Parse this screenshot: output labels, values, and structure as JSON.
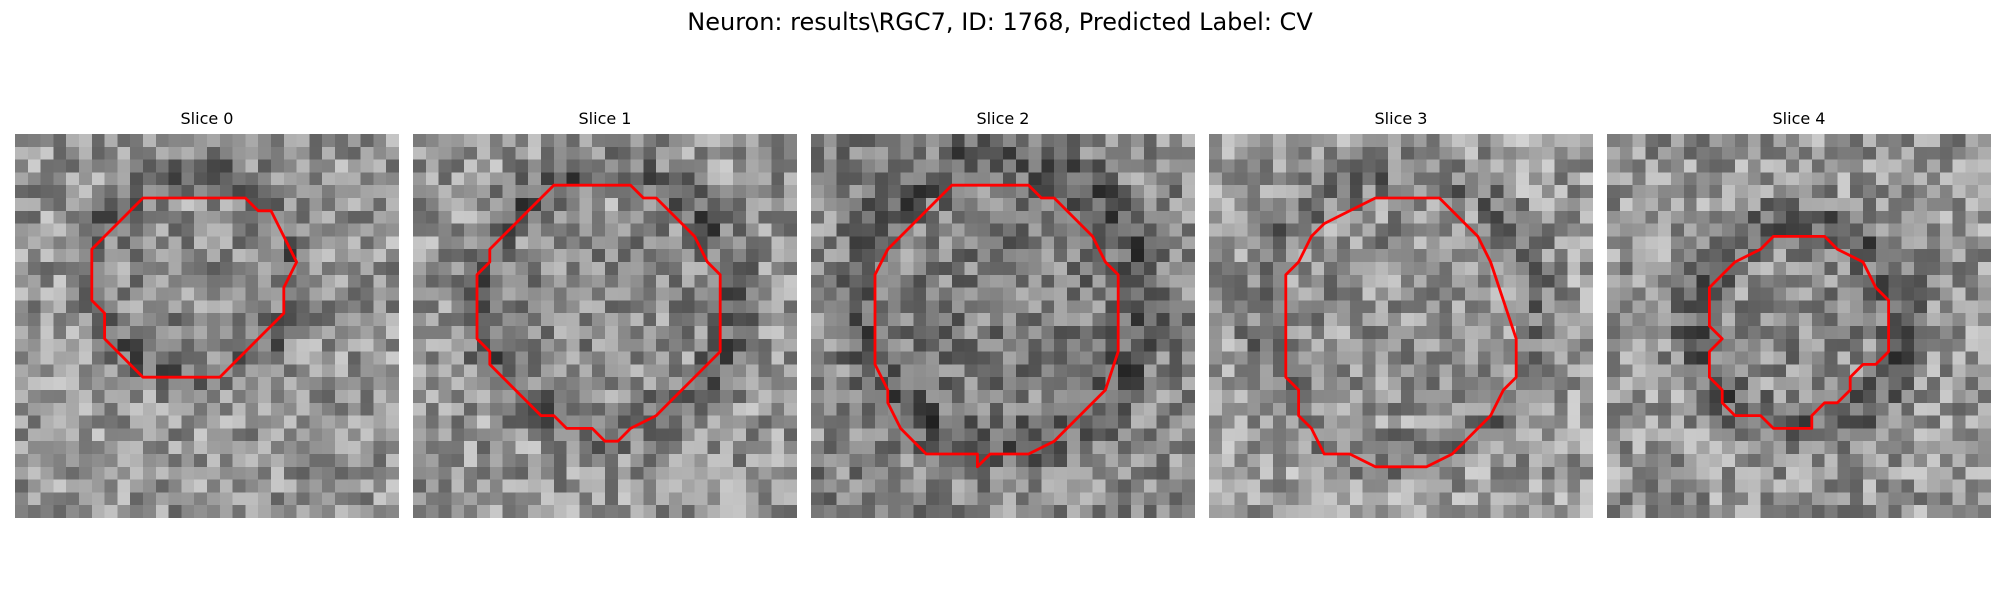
{
  "figure": {
    "title": "Neuron: results\\RGC7, ID: 1768, Predicted Label: CV"
  },
  "contour_color": "#ff0000",
  "grid_size": 30,
  "slices": [
    {
      "label": "Slice 0",
      "seed": 11,
      "base_gray": 150,
      "ring": {
        "cx": 14,
        "cy": 11,
        "r": 8,
        "width": 2.5,
        "dark": -55
      },
      "contour": [
        [
          10,
          5
        ],
        [
          18,
          5
        ],
        [
          19,
          6
        ],
        [
          20,
          6
        ],
        [
          21,
          8
        ],
        [
          22,
          10
        ],
        [
          21,
          12
        ],
        [
          21,
          14
        ],
        [
          19,
          16
        ],
        [
          17,
          18
        ],
        [
          16,
          19
        ],
        [
          10,
          19
        ],
        [
          8,
          17
        ],
        [
          7,
          16
        ],
        [
          7,
          14
        ],
        [
          6,
          13
        ],
        [
          6,
          9
        ],
        [
          7,
          8
        ],
        [
          9,
          6
        ]
      ]
    },
    {
      "label": "Slice 1",
      "seed": 23,
      "base_gray": 150,
      "ring": {
        "cx": 15,
        "cy": 13,
        "r": 10,
        "width": 2.5,
        "dark": -60
      },
      "contour": [
        [
          11,
          4
        ],
        [
          17,
          4
        ],
        [
          18,
          5
        ],
        [
          19,
          5
        ],
        [
          22,
          8
        ],
        [
          23,
          10
        ],
        [
          24,
          11
        ],
        [
          24,
          17
        ],
        [
          20,
          21
        ],
        [
          19,
          22
        ],
        [
          17,
          23
        ],
        [
          16,
          24
        ],
        [
          15,
          24
        ],
        [
          14,
          23
        ],
        [
          12,
          23
        ],
        [
          11,
          22
        ],
        [
          10,
          22
        ],
        [
          7,
          19
        ],
        [
          6,
          18
        ],
        [
          6,
          17
        ],
        [
          5,
          16
        ],
        [
          5,
          11
        ],
        [
          6,
          10
        ],
        [
          6,
          9
        ],
        [
          7,
          8
        ],
        [
          8,
          7
        ],
        [
          9,
          6
        ],
        [
          10,
          5
        ]
      ]
    },
    {
      "label": "Slice 2",
      "seed": 37,
      "base_gray": 135,
      "ring": {
        "cx": 15,
        "cy": 13,
        "r": 11,
        "width": 3,
        "dark": -50
      },
      "contour": [
        [
          11,
          4
        ],
        [
          17,
          4
        ],
        [
          18,
          5
        ],
        [
          19,
          5
        ],
        [
          22,
          8
        ],
        [
          23,
          10
        ],
        [
          24,
          11
        ],
        [
          24,
          17
        ],
        [
          23,
          20
        ],
        [
          20,
          23
        ],
        [
          19,
          24
        ],
        [
          17,
          25
        ],
        [
          14,
          25
        ],
        [
          13,
          26
        ],
        [
          13,
          25
        ],
        [
          9,
          25
        ],
        [
          8,
          24
        ],
        [
          7,
          23
        ],
        [
          6,
          21
        ],
        [
          6,
          20
        ],
        [
          5,
          18
        ],
        [
          5,
          11
        ],
        [
          6,
          9
        ],
        [
          8,
          7
        ],
        [
          10,
          5
        ]
      ]
    },
    {
      "label": "Slice 3",
      "seed": 51,
      "base_gray": 155,
      "ring": {
        "cx": 15,
        "cy": 14,
        "r": 11,
        "width": 2.5,
        "dark": -45
      },
      "contour": [
        [
          13,
          5
        ],
        [
          18,
          5
        ],
        [
          20,
          7
        ],
        [
          21,
          8
        ],
        [
          22,
          10
        ],
        [
          23,
          13
        ],
        [
          24,
          16
        ],
        [
          24,
          19
        ],
        [
          23,
          20
        ],
        [
          22,
          22
        ],
        [
          20,
          24
        ],
        [
          19,
          25
        ],
        [
          17,
          26
        ],
        [
          13,
          26
        ],
        [
          11,
          25
        ],
        [
          9,
          25
        ],
        [
          8,
          23
        ],
        [
          7,
          22
        ],
        [
          7,
          20
        ],
        [
          6,
          19
        ],
        [
          6,
          11
        ],
        [
          7,
          10
        ],
        [
          8,
          8
        ],
        [
          9,
          7
        ],
        [
          11,
          6
        ]
      ]
    },
    {
      "label": "Slice 4",
      "seed": 67,
      "base_gray": 150,
      "ring": {
        "cx": 15,
        "cy": 15,
        "r": 8,
        "width": 3,
        "dark": -60
      },
      "contour": [
        [
          13,
          8
        ],
        [
          17,
          8
        ],
        [
          18,
          9
        ],
        [
          20,
          10
        ],
        [
          21,
          12
        ],
        [
          22,
          13
        ],
        [
          22,
          17
        ],
        [
          21,
          18
        ],
        [
          20,
          18
        ],
        [
          19,
          19
        ],
        [
          19,
          20
        ],
        [
          18,
          21
        ],
        [
          17,
          21
        ],
        [
          16,
          22
        ],
        [
          16,
          23
        ],
        [
          13,
          23
        ],
        [
          12,
          22
        ],
        [
          10,
          22
        ],
        [
          9,
          21
        ],
        [
          9,
          20
        ],
        [
          8,
          19
        ],
        [
          8,
          17
        ],
        [
          9,
          16
        ],
        [
          8,
          15
        ],
        [
          8,
          12
        ],
        [
          9,
          11
        ],
        [
          10,
          10
        ],
        [
          12,
          9
        ]
      ]
    }
  ]
}
